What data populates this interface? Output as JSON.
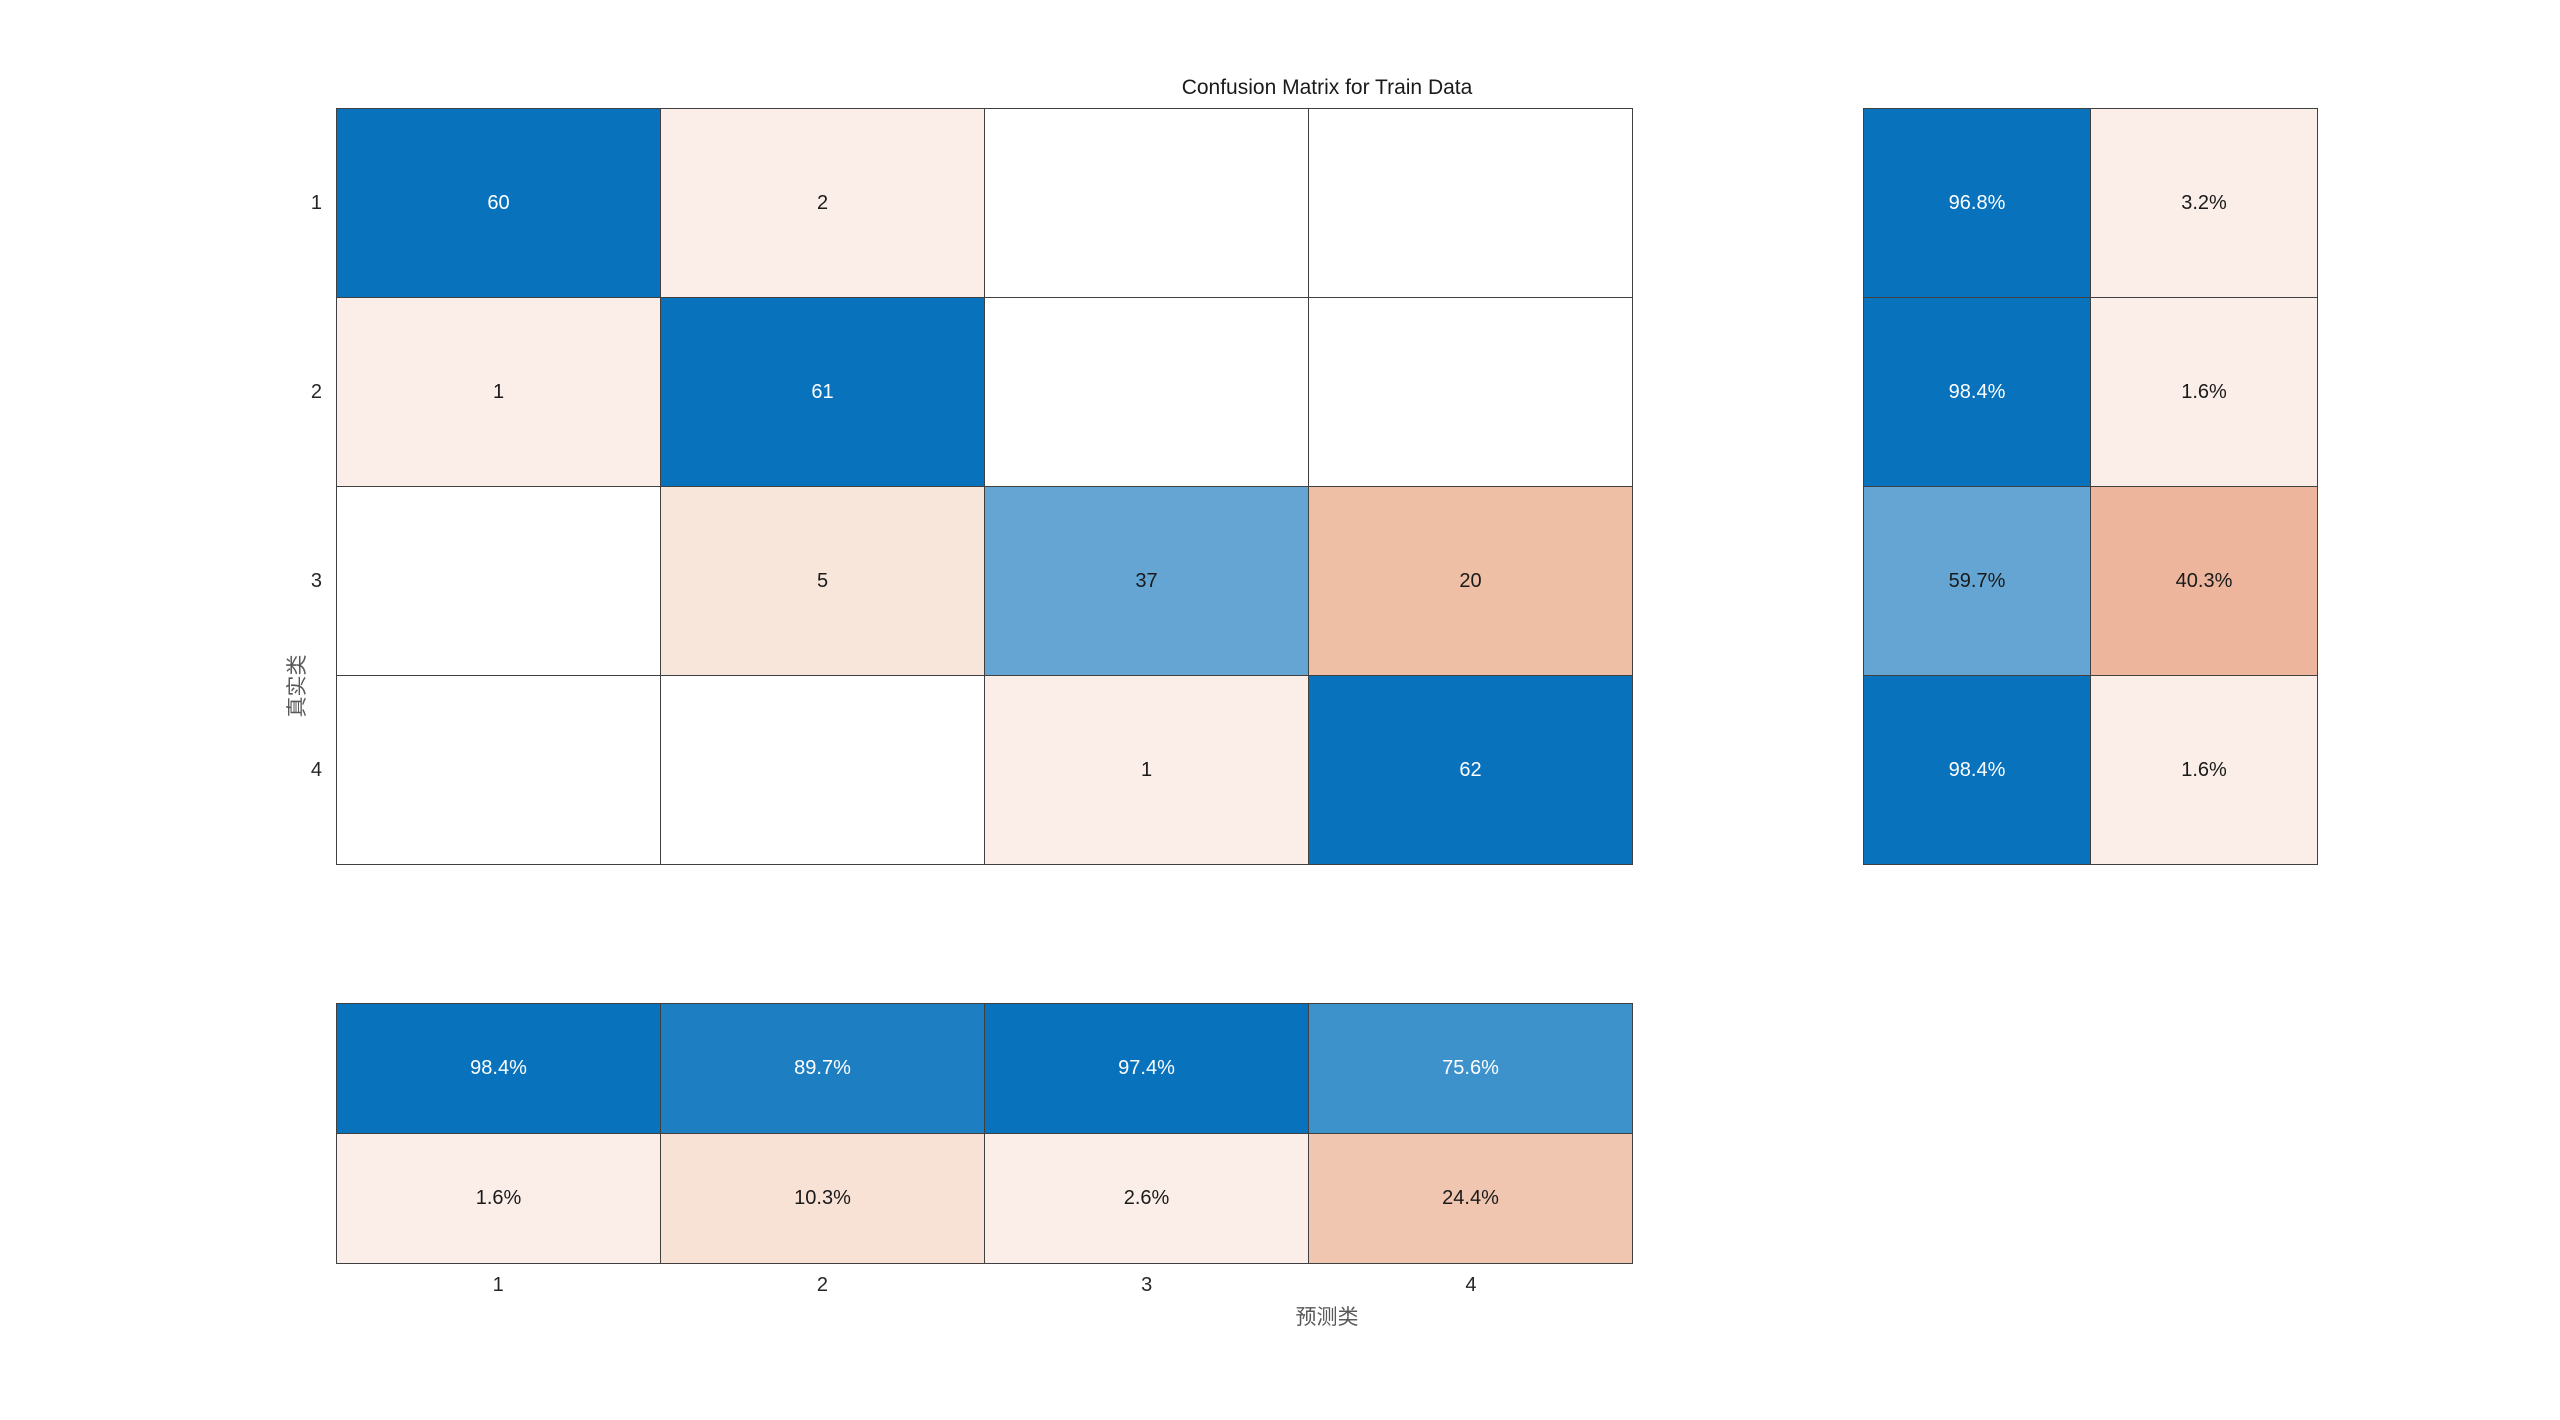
{
  "title": "Confusion Matrix for Train Data",
  "axes": {
    "xlabel": "预测类",
    "ylabel": "真实类",
    "x_ticks": [
      "1",
      "2",
      "3",
      "4"
    ],
    "y_ticks": [
      "1",
      "2",
      "3",
      "4"
    ]
  },
  "colors": {
    "diagonal_blue": "#0873BC",
    "blue_89_7": "#1D7EC1",
    "blue_75_6": "#3E92CC",
    "blue_59_7": "#64A5D3",
    "pink_faint": "#FBEEE8",
    "pink_5": "#F8E6DB",
    "pink_10_3": "#F8E2D6",
    "salmon_20": "#EFBFA5",
    "salmon_40_3": "#EDB69C",
    "salmon_24_4": "#F1C6B0",
    "grid_line": "#404040",
    "text_dark": "#1A1A1A",
    "text_light": "#FFFFFF"
  },
  "chart_data": {
    "type": "heatmap",
    "title": "Confusion Matrix for Train Data",
    "xlabel": "预测类",
    "ylabel": "真实类",
    "classes": [
      "1",
      "2",
      "3",
      "4"
    ],
    "matrix_counts": [
      [
        60,
        2,
        null,
        null
      ],
      [
        1,
        61,
        null,
        null
      ],
      [
        null,
        5,
        37,
        20
      ],
      [
        null,
        null,
        1,
        62
      ]
    ],
    "row_summary_percent": [
      [
        96.8,
        3.2
      ],
      [
        98.4,
        1.6
      ],
      [
        59.7,
        40.3
      ],
      [
        98.4,
        1.6
      ]
    ],
    "col_summary_percent": [
      [
        98.4,
        89.7,
        97.4,
        75.6
      ],
      [
        1.6,
        10.3,
        2.6,
        24.4
      ]
    ],
    "legend_position": "none",
    "grid": "on",
    "display": {
      "main_cells": [
        {
          "text": "60",
          "bg": "#0873BC",
          "fg": "#FFFFFF"
        },
        {
          "text": "2",
          "bg": "#FBEEE8",
          "fg": "#1A1A1A"
        },
        {
          "text": "",
          "bg": "#FFFFFF",
          "fg": "#1A1A1A"
        },
        {
          "text": "",
          "bg": "#FFFFFF",
          "fg": "#1A1A1A"
        },
        {
          "text": "1",
          "bg": "#FBEEE8",
          "fg": "#1A1A1A"
        },
        {
          "text": "61",
          "bg": "#0873BC",
          "fg": "#FFFFFF"
        },
        {
          "text": "",
          "bg": "#FFFFFF",
          "fg": "#1A1A1A"
        },
        {
          "text": "",
          "bg": "#FFFFFF",
          "fg": "#1A1A1A"
        },
        {
          "text": "",
          "bg": "#FFFFFF",
          "fg": "#1A1A1A"
        },
        {
          "text": "5",
          "bg": "#F8E6DB",
          "fg": "#1A1A1A"
        },
        {
          "text": "37",
          "bg": "#64A5D3",
          "fg": "#1A1A1A"
        },
        {
          "text": "20",
          "bg": "#EFBFA5",
          "fg": "#1A1A1A"
        },
        {
          "text": "",
          "bg": "#FFFFFF",
          "fg": "#1A1A1A"
        },
        {
          "text": "",
          "bg": "#FFFFFF",
          "fg": "#1A1A1A"
        },
        {
          "text": "1",
          "bg": "#FBEEE8",
          "fg": "#1A1A1A"
        },
        {
          "text": "62",
          "bg": "#0873BC",
          "fg": "#FFFFFF"
        }
      ],
      "row_summary_cells": [
        {
          "text": "96.8%",
          "bg": "#0873BC",
          "fg": "#FFFFFF"
        },
        {
          "text": "3.2%",
          "bg": "#FBEEE8",
          "fg": "#1A1A1A"
        },
        {
          "text": "98.4%",
          "bg": "#0873BC",
          "fg": "#FFFFFF"
        },
        {
          "text": "1.6%",
          "bg": "#FBEEE8",
          "fg": "#1A1A1A"
        },
        {
          "text": "59.7%",
          "bg": "#64A5D3",
          "fg": "#1A1A1A"
        },
        {
          "text": "40.3%",
          "bg": "#EDB69C",
          "fg": "#1A1A1A"
        },
        {
          "text": "98.4%",
          "bg": "#0873BC",
          "fg": "#FFFFFF"
        },
        {
          "text": "1.6%",
          "bg": "#FBEEE8",
          "fg": "#1A1A1A"
        }
      ],
      "col_summary_cells": [
        {
          "text": "98.4%",
          "bg": "#0873BC",
          "fg": "#FFFFFF"
        },
        {
          "text": "89.7%",
          "bg": "#1D7EC1",
          "fg": "#FFFFFF"
        },
        {
          "text": "97.4%",
          "bg": "#0873BC",
          "fg": "#FFFFFF"
        },
        {
          "text": "75.6%",
          "bg": "#3E92CC",
          "fg": "#FFFFFF"
        },
        {
          "text": "1.6%",
          "bg": "#FBEEE8",
          "fg": "#1A1A1A"
        },
        {
          "text": "10.3%",
          "bg": "#F8E2D6",
          "fg": "#1A1A1A"
        },
        {
          "text": "2.6%",
          "bg": "#FBEEE8",
          "fg": "#1A1A1A"
        },
        {
          "text": "24.4%",
          "bg": "#F1C6B0",
          "fg": "#1A1A1A"
        }
      ]
    }
  }
}
